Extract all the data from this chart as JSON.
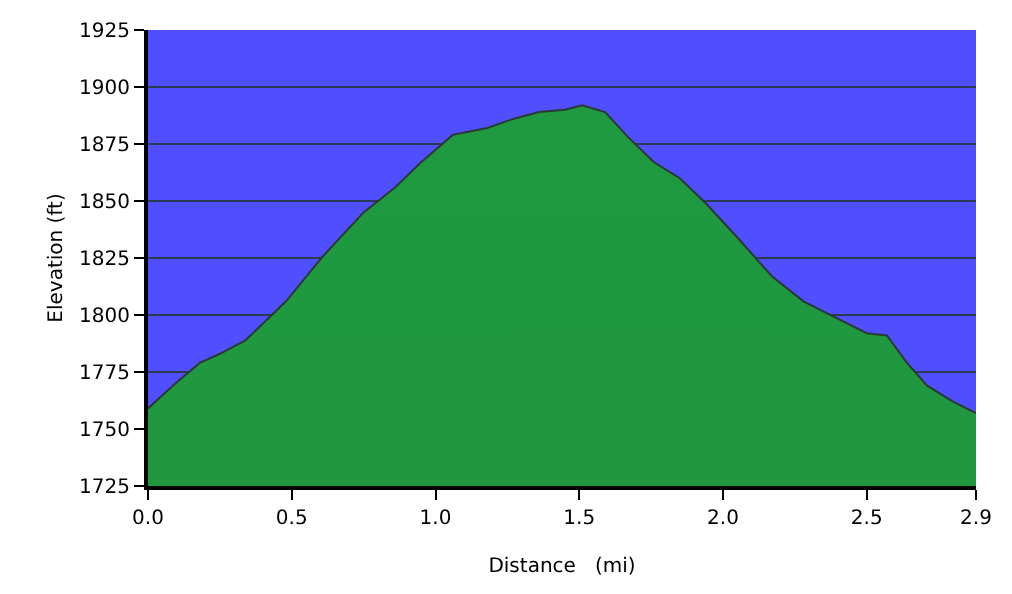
{
  "chart_data": {
    "type": "area",
    "xlabel": "Distance   (mi)",
    "ylabel": "Elevation (ft)",
    "x": [
      0,
      0.095,
      0.18,
      0.25,
      0.34,
      0.48,
      0.61,
      0.75,
      0.86,
      0.95,
      1.06,
      1.18,
      1.27,
      1.36,
      1.45,
      1.51,
      1.59,
      1.67,
      1.76,
      1.85,
      1.94,
      2.05,
      2.17,
      2.28,
      2.39,
      2.5,
      2.57,
      2.64,
      2.71,
      2.8,
      2.88
    ],
    "series": [
      {
        "color": "#1f9a40",
        "values": [
          1759,
          1770,
          1779,
          1783,
          1789,
          1806,
          1826,
          1845,
          1856,
          1867,
          1879,
          1882,
          1886,
          1889,
          1890,
          1892,
          1889,
          1878,
          1867,
          1860,
          1849,
          1834,
          1817,
          1806,
          1799,
          1792,
          1791,
          1779,
          1769,
          1762,
          1757
        ]
      }
    ],
    "xlim": [
      0,
      2.88
    ],
    "xticks": [
      {
        "value": 0,
        "label": "0.0"
      },
      0.5,
      {
        "value": 1,
        "label": "1.0"
      },
      1.5,
      {
        "value": 2,
        "label": "2.0"
      },
      2.5,
      {
        "value": 2.88,
        "label": "2.9"
      }
    ],
    "ylim": [
      1725,
      1925
    ],
    "yticks": [
      1725,
      1750,
      1775,
      1800,
      1825,
      1850,
      1875,
      1900,
      1925
    ],
    "grid": "y"
  }
}
